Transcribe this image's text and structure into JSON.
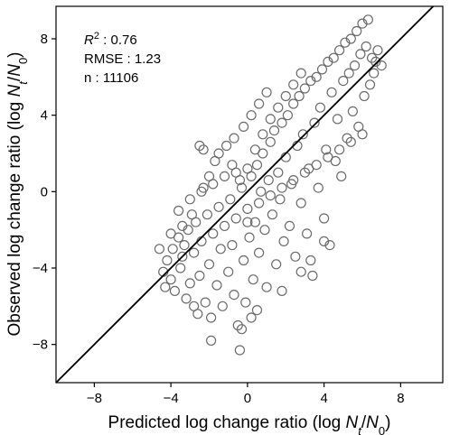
{
  "chart_data": {
    "type": "scatter",
    "title": "",
    "xlabel": "Predicted log change ratio (log Nt/N0)",
    "ylabel": "Observed log change ratio (log Nt/N0)",
    "xlabel_parts": {
      "prefix": "Predicted log change ratio (log ",
      "n": "N",
      "t": "t",
      "slash": "/",
      "n0": "N",
      "zero": "0",
      "suffix": ")"
    },
    "ylabel_parts": {
      "prefix": "Observed log change ratio (log ",
      "n": "N",
      "t": "t",
      "slash": "/",
      "n0": "N",
      "zero": "0",
      "suffix": ")"
    },
    "xlim": [
      -10,
      10.2
    ],
    "ylim": [
      -10,
      9.7
    ],
    "xticks": [
      -8,
      -4,
      0,
      4,
      8
    ],
    "xtick_labels": [
      "−8",
      "−4",
      "0",
      "4",
      "8"
    ],
    "yticks": [
      -8,
      -4,
      0,
      4,
      8
    ],
    "ytick_labels": [
      "−8",
      "−4",
      "0",
      "4",
      "8"
    ],
    "grid": false,
    "legend": "none",
    "marker": "open-circle",
    "marker_color": "#6b6b6b",
    "line_color": "#000000",
    "reference_line": {
      "label": "1:1 line",
      "x": [
        -10,
        10.2
      ],
      "y": [
        -10,
        10.2
      ]
    },
    "stats": {
      "r2_symbol": "R",
      "r2_sup": "2",
      "r2_value": " : 0.76",
      "rmse": "RMSE : 1.23",
      "n": "n : 11106"
    },
    "series": [
      {
        "points": [
          [
            -4.4,
            -4.2
          ],
          [
            -4.2,
            -3.6
          ],
          [
            -4.0,
            -4.6
          ],
          [
            -3.9,
            -3.0
          ],
          [
            -3.8,
            -5.2
          ],
          [
            -3.6,
            -2.4
          ],
          [
            -3.5,
            -4.0
          ],
          [
            -3.4,
            -3.4
          ],
          [
            -3.2,
            -5.6
          ],
          [
            -3.1,
            -2.0
          ],
          [
            -3.0,
            -4.8
          ],
          [
            -2.8,
            -3.2
          ],
          [
            -2.7,
            -1.6
          ],
          [
            -2.6,
            -6.4
          ],
          [
            -2.5,
            -4.4
          ],
          [
            -2.4,
            -2.6
          ],
          [
            -2.2,
            -5.8
          ],
          [
            -2.1,
            -1.2
          ],
          [
            -2.0,
            -3.8
          ],
          [
            -1.9,
            -6.6
          ],
          [
            -1.8,
            -2.2
          ],
          [
            -1.6,
            -4.9
          ],
          [
            -1.5,
            -0.8
          ],
          [
            -1.4,
            -3.0
          ],
          [
            -1.3,
            -6.0
          ],
          [
            -1.2,
            -1.8
          ],
          [
            -1.0,
            -4.2
          ],
          [
            -0.9,
            -0.4
          ],
          [
            -0.8,
            -2.8
          ],
          [
            -0.7,
            -5.4
          ],
          [
            -0.6,
            -1.4
          ],
          [
            -0.5,
            -7.0
          ],
          [
            -0.4,
            -8.3
          ],
          [
            -0.3,
            0.2
          ],
          [
            -0.2,
            -3.6
          ],
          [
            -0.1,
            -5.8
          ],
          [
            0.0,
            -0.9
          ],
          [
            0.1,
            -2.4
          ],
          [
            0.2,
            0.8
          ],
          [
            0.3,
            -4.6
          ],
          [
            0.4,
            -1.6
          ],
          [
            0.5,
            1.4
          ],
          [
            0.6,
            -3.2
          ],
          [
            0.7,
            0.0
          ],
          [
            0.8,
            2.0
          ],
          [
            0.9,
            -2.0
          ],
          [
            1.0,
            -5.0
          ],
          [
            1.1,
            0.6
          ],
          [
            1.2,
            2.6
          ],
          [
            1.3,
            -1.2
          ],
          [
            1.4,
            3.2
          ],
          [
            1.5,
            -3.8
          ],
          [
            1.6,
            1.0
          ],
          [
            1.7,
            -0.4
          ],
          [
            1.8,
            3.6
          ],
          [
            1.9,
            -2.6
          ],
          [
            2.0,
            1.8
          ],
          [
            2.1,
            4.0
          ],
          [
            2.2,
            -1.8
          ],
          [
            2.3,
            0.4
          ],
          [
            2.4,
            4.6
          ],
          [
            2.5,
            -3.4
          ],
          [
            2.6,
            2.4
          ],
          [
            2.7,
            5.0
          ],
          [
            2.8,
            -0.6
          ],
          [
            2.9,
            3.0
          ],
          [
            3.0,
            5.4
          ],
          [
            3.1,
            -2.2
          ],
          [
            3.2,
            1.2
          ],
          [
            3.3,
            5.8
          ],
          [
            3.4,
            -4.4
          ],
          [
            3.5,
            3.6
          ],
          [
            3.6,
            6.0
          ],
          [
            3.7,
            0.2
          ],
          [
            3.8,
            4.4
          ],
          [
            3.9,
            6.4
          ],
          [
            4.0,
            -1.4
          ],
          [
            4.1,
            2.2
          ],
          [
            4.2,
            6.8
          ],
          [
            4.3,
            -2.8
          ],
          [
            4.4,
            5.2
          ],
          [
            4.5,
            7.0
          ],
          [
            4.6,
            1.6
          ],
          [
            4.7,
            3.8
          ],
          [
            4.8,
            7.4
          ],
          [
            4.9,
            0.8
          ],
          [
            5.0,
            5.8
          ],
          [
            5.1,
            7.8
          ],
          [
            5.2,
            2.8
          ],
          [
            5.3,
            6.2
          ],
          [
            5.4,
            8.0
          ],
          [
            5.5,
            4.2
          ],
          [
            5.6,
            6.6
          ],
          [
            5.7,
            8.4
          ],
          [
            5.8,
            3.4
          ],
          [
            5.9,
            7.2
          ],
          [
            6.0,
            8.8
          ],
          [
            6.1,
            5.0
          ],
          [
            6.2,
            7.6
          ],
          [
            6.3,
            9.0
          ],
          [
            6.4,
            5.6
          ],
          [
            6.5,
            7.0
          ],
          [
            6.6,
            6.2
          ],
          [
            6.7,
            6.8
          ],
          [
            6.8,
            7.4
          ],
          [
            7.0,
            6.6
          ],
          [
            -4.6,
            -3.0
          ],
          [
            -4.3,
            -5.0
          ],
          [
            -3.3,
            -2.8
          ],
          [
            -2.9,
            -1.2
          ],
          [
            -2.3,
            0.2
          ],
          [
            -2.0,
            0.8
          ],
          [
            -1.7,
            1.6
          ],
          [
            -1.5,
            2.0
          ],
          [
            -1.1,
            2.4
          ],
          [
            -0.7,
            2.8
          ],
          [
            -0.2,
            3.4
          ],
          [
            0.2,
            4.0
          ],
          [
            0.6,
            4.6
          ],
          [
            1.0,
            5.2
          ],
          [
            -2.5,
            2.4
          ],
          [
            -2.3,
            2.2
          ],
          [
            -1.9,
            -7.8
          ],
          [
            0.5,
            -6.2
          ],
          [
            0.2,
            -6.6
          ],
          [
            -0.3,
            -7.2
          ],
          [
            4.0,
            -2.6
          ],
          [
            3.3,
            -3.6
          ],
          [
            2.8,
            -4.2
          ],
          [
            1.8,
            -5.2
          ],
          [
            -0.8,
            1.4
          ],
          [
            -0.4,
            0.6
          ],
          [
            0.0,
            1.2
          ],
          [
            0.4,
            2.2
          ],
          [
            0.8,
            3.0
          ],
          [
            1.2,
            3.8
          ],
          [
            1.6,
            4.4
          ],
          [
            2.0,
            5.0
          ],
          [
            2.4,
            5.6
          ],
          [
            2.8,
            6.2
          ],
          [
            -3.6,
            -1.0
          ],
          [
            -3.0,
            -0.4
          ],
          [
            -2.4,
            0.0
          ],
          [
            -1.8,
            0.4
          ],
          [
            -1.2,
            0.8
          ],
          [
            -0.6,
            1.0
          ],
          [
            0.0,
            -1.6
          ],
          [
            0.6,
            -0.6
          ],
          [
            1.2,
            -0.2
          ],
          [
            1.8,
            0.2
          ],
          [
            2.4,
            0.6
          ],
          [
            3.0,
            1.0
          ],
          [
            3.6,
            1.4
          ],
          [
            4.2,
            1.8
          ],
          [
            4.8,
            2.2
          ],
          [
            5.4,
            2.6
          ],
          [
            6.0,
            3.0
          ],
          [
            -4.0,
            -2.2
          ],
          [
            -3.4,
            -1.8
          ],
          [
            -2.8,
            -6.0
          ]
        ]
      }
    ]
  }
}
